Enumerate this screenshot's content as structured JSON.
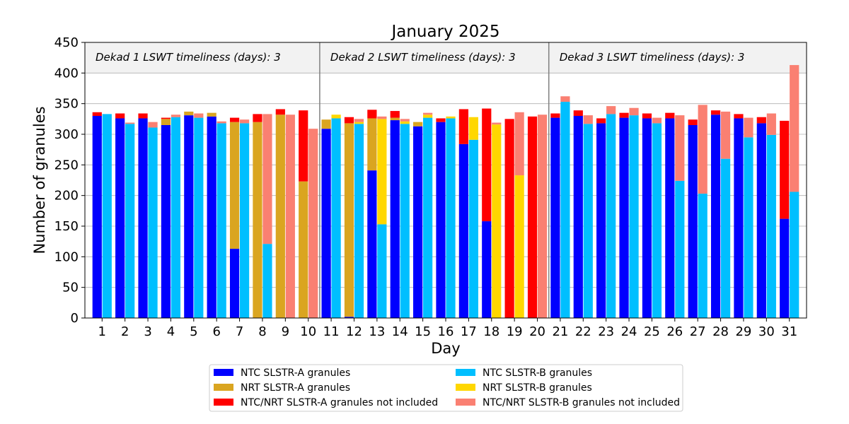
{
  "chart_data": {
    "type": "bar",
    "title": "January 2025",
    "xlabel": "Day",
    "ylabel": "Number of granules",
    "ylim": [
      0,
      450
    ],
    "yticks": [
      0,
      50,
      100,
      150,
      200,
      250,
      300,
      350,
      400,
      450
    ],
    "categories": [
      "1",
      "2",
      "3",
      "4",
      "5",
      "6",
      "7",
      "8",
      "9",
      "10",
      "11",
      "12",
      "13",
      "14",
      "15",
      "16",
      "17",
      "18",
      "19",
      "20",
      "21",
      "22",
      "23",
      "24",
      "25",
      "26",
      "27",
      "28",
      "29",
      "30",
      "31"
    ],
    "grid": "horizontal",
    "legend_position": "below",
    "dekads": [
      {
        "label": "Dekad 1 LSWT timeliness (days): 3",
        "days": [
          1,
          10
        ]
      },
      {
        "label": "Dekad 2 LSWT timeliness (days): 3",
        "days": [
          11,
          20
        ]
      },
      {
        "label": "Dekad 3 LSWT timeliness (days): 3",
        "days": [
          21,
          31
        ]
      }
    ],
    "stacks": [
      {
        "bar": "SLSTR-A",
        "series": [
          {
            "name": "NTC SLSTR-A granules",
            "color": "#0000ff",
            "values": [
              330,
              326,
              326,
              315,
              331,
              329,
              113,
              0,
              0,
              0,
              309,
              2,
              241,
              323,
              313,
              320,
              284,
              158,
              0,
              0,
              327,
              330,
              318,
              327,
              326,
              326,
              315,
              332,
              326,
              318,
              162
            ]
          },
          {
            "name": "NRT SLSTR-A granules",
            "color": "#daa520",
            "values": [
              0,
              0,
              0,
              10,
              6,
              6,
              207,
              320,
              332,
              223,
              15,
              316,
              85,
              4,
              7,
              0,
              0,
              0,
              0,
              0,
              0,
              0,
              0,
              0,
              0,
              0,
              0,
              0,
              0,
              0,
              0
            ]
          },
          {
            "name": "NTC/NRT SLSTR-A granules not included",
            "color": "#ff0000",
            "values": [
              6,
              8,
              8,
              2,
              0,
              0,
              7,
              13,
              9,
              116,
              0,
              10,
              14,
              11,
              0,
              6,
              57,
              184,
              325,
              329,
              7,
              9,
              8,
              8,
              8,
              9,
              9,
              7,
              7,
              10,
              160
            ]
          }
        ]
      },
      {
        "bar": "SLSTR-B",
        "series": [
          {
            "name": "NTC SLSTR-B granules",
            "color": "#00bfff",
            "values": [
              333,
              317,
              311,
              328,
              327,
              318,
              318,
              121,
              0,
              0,
              326,
              317,
              153,
              317,
              327,
              326,
              291,
              0,
              0,
              0,
              353,
              317,
              333,
              331,
              318,
              224,
              203,
              260,
              295,
              299,
              206
            ]
          },
          {
            "name": "NRT SLSTR-B granules",
            "color": "#ffd700",
            "values": [
              0,
              0,
              0,
              0,
              0,
              0,
              0,
              0,
              0,
              0,
              6,
              3,
              172,
              4,
              5,
              3,
              37,
              316,
              233,
              0,
              0,
              0,
              0,
              0,
              0,
              0,
              0,
              0,
              0,
              0,
              0
            ]
          },
          {
            "name": "NTC/NRT SLSTR-B granules not included",
            "color": "#fa8072",
            "values": [
              0,
              2,
              9,
              4,
              7,
              3,
              6,
              212,
              332,
              309,
              0,
              5,
              4,
              4,
              3,
              0,
              0,
              3,
              103,
              332,
              9,
              14,
              13,
              12,
              9,
              107,
              145,
              77,
              32,
              35,
              207
            ]
          }
        ]
      }
    ],
    "legend": [
      {
        "label": "NTC SLSTR-A granules",
        "color": "#0000ff"
      },
      {
        "label": "NTC SLSTR-B granules",
        "color": "#00bfff"
      },
      {
        "label": "NRT SLSTR-A granules",
        "color": "#daa520"
      },
      {
        "label": "NRT SLSTR-B granules",
        "color": "#ffd700"
      },
      {
        "label": "NTC/NRT SLSTR-A granules not included",
        "color": "#ff0000"
      },
      {
        "label": "NTC/NRT SLSTR-B granules not included",
        "color": "#fa8072"
      }
    ]
  }
}
